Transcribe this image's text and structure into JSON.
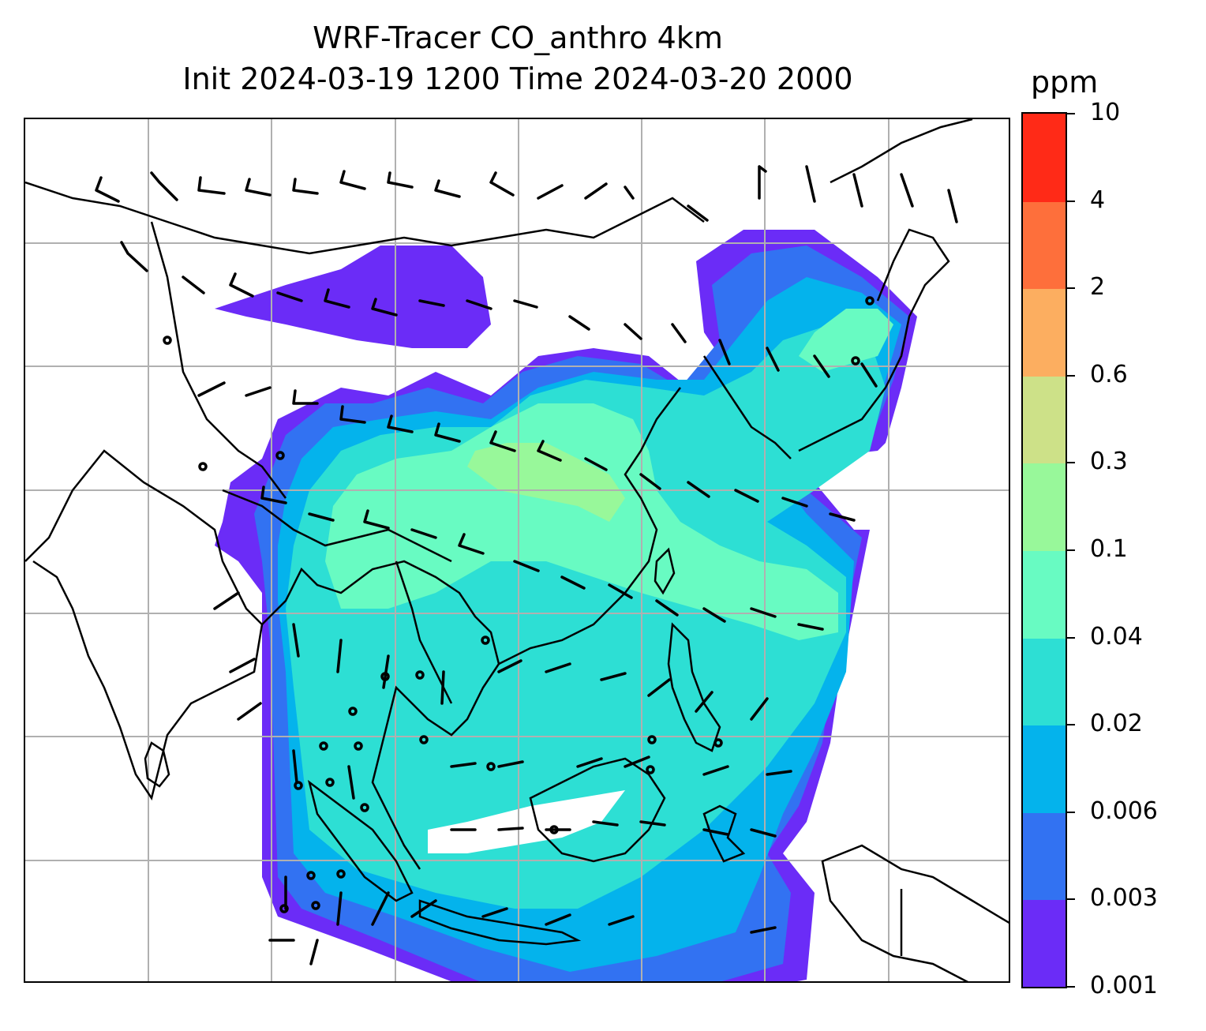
{
  "title": {
    "line1": "WRF-Tracer CO_anthro 4km",
    "line2": "Init 2024-03-19 1200 Time 2024-03-20 2000"
  },
  "colorbar": {
    "unit": "ppm",
    "levels": [
      "0.001",
      "0.003",
      "0.006",
      "0.02",
      "0.04",
      "0.1",
      "0.3",
      "0.6",
      "2",
      "4",
      "10"
    ],
    "colors": [
      "#6b2cf7",
      "#3272f2",
      "#04b3ec",
      "#2ddfd4",
      "#68fbc2",
      "#98f89a",
      "#cde188",
      "#fcae60",
      "#fe6f3b",
      "#ff2a17"
    ]
  },
  "map": {
    "projection_grid": "lat-lon gridlines",
    "field": "CO_anthro concentration",
    "overlay": "wind barbs",
    "features": [
      "coastlines",
      "country borders",
      "gridlines"
    ]
  }
}
